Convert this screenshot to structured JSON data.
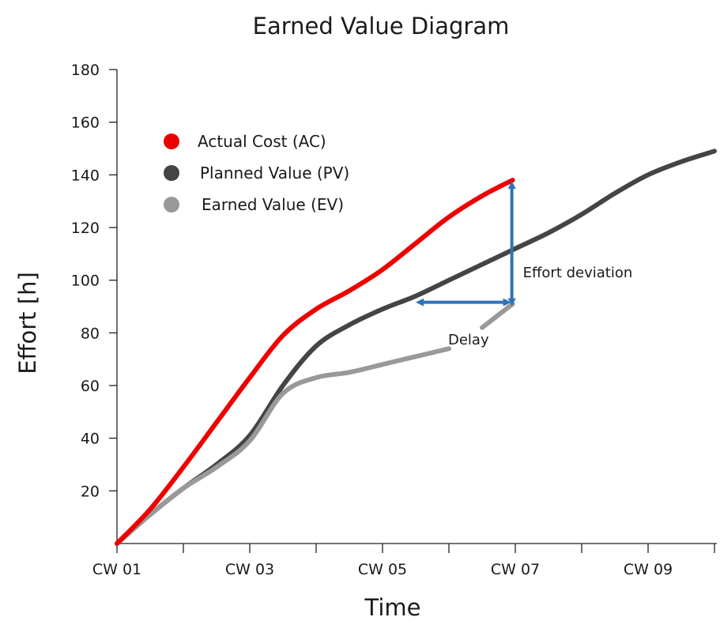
{
  "chart_data": {
    "type": "line",
    "title": "Earned Value Diagram",
    "xlabel": "Time",
    "ylabel": "Effort [h]",
    "ylim": [
      0,
      180
    ],
    "xlim": [
      1,
      10
    ],
    "yticks": [
      20,
      40,
      60,
      80,
      100,
      120,
      140,
      160,
      180
    ],
    "xtick_labels": [
      {
        "x": 1,
        "label": "CW 01"
      },
      {
        "x": 3,
        "label": "CW 03"
      },
      {
        "x": 5,
        "label": "CW 05"
      },
      {
        "x": 7,
        "label": "CW 07"
      },
      {
        "x": 9,
        "label": "CW 09"
      }
    ],
    "minor_xticks": [
      2,
      4,
      6,
      8,
      10
    ],
    "grid": false,
    "legend_position": "top-left",
    "series": [
      {
        "name": "Actual Cost (AC)",
        "color": "#ee0000",
        "points": [
          [
            1,
            0
          ],
          [
            1.5,
            13
          ],
          [
            2,
            29
          ],
          [
            2.5,
            46
          ],
          [
            3,
            63
          ],
          [
            3.5,
            79
          ],
          [
            4,
            89
          ],
          [
            4.5,
            96
          ],
          [
            5,
            104
          ],
          [
            5.5,
            114
          ],
          [
            6,
            124
          ],
          [
            6.5,
            132
          ],
          [
            6.96,
            138
          ]
        ]
      },
      {
        "name": "Planned Value (PV)",
        "color": "#444444",
        "points": [
          [
            1,
            0
          ],
          [
            1.5,
            11
          ],
          [
            2,
            21
          ],
          [
            2.5,
            30
          ],
          [
            3,
            41
          ],
          [
            3.5,
            60
          ],
          [
            4,
            75
          ],
          [
            4.5,
            83
          ],
          [
            5,
            89
          ],
          [
            5.5,
            94
          ],
          [
            6,
            100
          ],
          [
            6.5,
            106
          ],
          [
            7,
            112
          ],
          [
            7.5,
            118
          ],
          [
            8,
            125
          ],
          [
            8.5,
            133
          ],
          [
            9,
            140
          ],
          [
            9.5,
            145
          ],
          [
            10,
            149
          ]
        ]
      },
      {
        "name": "Earned Value (EV)",
        "color": "#999999",
        "points": [
          [
            1,
            0
          ],
          [
            1.5,
            11
          ],
          [
            2,
            21
          ],
          [
            2.5,
            29
          ],
          [
            3,
            39
          ],
          [
            3.5,
            57
          ],
          [
            4,
            63
          ],
          [
            4.5,
            65
          ],
          [
            5,
            68
          ],
          [
            5.5,
            71
          ],
          [
            6,
            74
          ]
        ],
        "extra_segment": [
          [
            6.5,
            82
          ],
          [
            6.96,
            91
          ]
        ]
      }
    ],
    "annotations": [
      {
        "text": "Effort deviation",
        "type": "vertical-arrow",
        "x": 6.96,
        "y_from": 91,
        "y_to": 138
      },
      {
        "text": "Delay",
        "type": "horizontal-arrow",
        "y": 91,
        "x_from": 5.5,
        "x_to": 6.96
      }
    ],
    "arrow_color": "#2e73b8"
  }
}
